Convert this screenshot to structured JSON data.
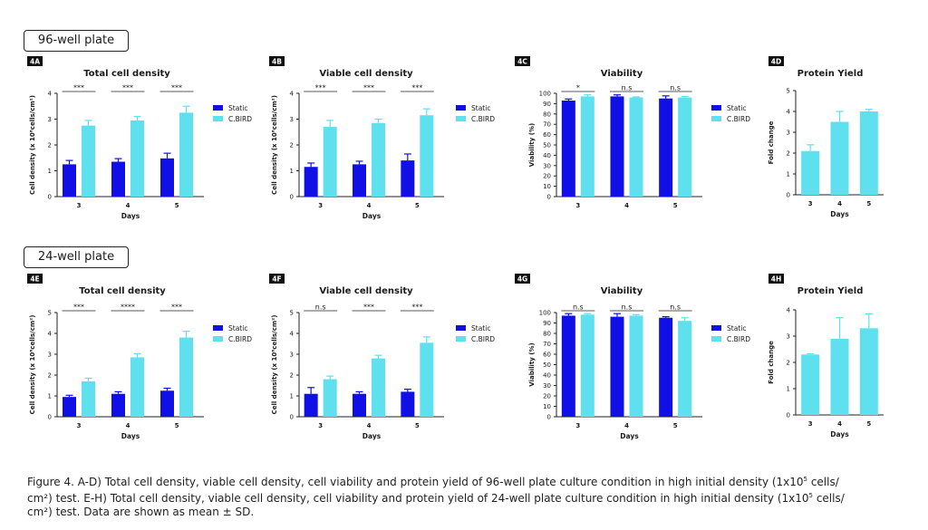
{
  "plates": {
    "p96": "96-well plate",
    "p24": "24-well plate"
  },
  "colors": {
    "static": "#1010e6",
    "cbird": "#5ee0ef"
  },
  "caption": {
    "line1a": "Figure 4. A-D) Total cell density, viable cell density, cell viability and protein yield of 96-well plate culture condition in high initial density (1x10",
    "sup1": "5",
    "line1b": " cells/",
    "line2a": "cm²) test. E-H) Total cell density, viable cell density, cell viability and protein yield of 24-well plate culture condition in high initial density (1x10",
    "sup2": "5",
    "line2b": " cells/",
    "line3": "cm²) test. Data are shown as mean ± SD."
  },
  "chart_data": [
    {
      "panel": "4A",
      "type": "bar",
      "title": "Total cell density",
      "xlabel": "Days",
      "ylabel": "Cell density (x 10⁶cells/cm²)",
      "ylim": [
        0,
        4
      ],
      "yticks": [
        0,
        1,
        2,
        3,
        4
      ],
      "categories": [
        "3",
        "4",
        "5"
      ],
      "series": [
        {
          "name": "Static",
          "values": [
            1.25,
            1.35,
            1.48
          ],
          "errors": [
            0.15,
            0.12,
            0.2
          ]
        },
        {
          "name": "C.BIRD",
          "values": [
            2.75,
            2.95,
            3.25
          ],
          "errors": [
            0.2,
            0.15,
            0.25
          ]
        }
      ],
      "significance": [
        "***",
        "***",
        "***"
      ]
    },
    {
      "panel": "4B",
      "type": "bar",
      "title": "Viable cell density",
      "xlabel": "Days",
      "ylabel": "Cell density (x 10⁶cells/cm²)",
      "ylim": [
        0,
        4
      ],
      "yticks": [
        0,
        1,
        2,
        3,
        4
      ],
      "categories": [
        "3",
        "4",
        "5"
      ],
      "series": [
        {
          "name": "Static",
          "values": [
            1.15,
            1.25,
            1.4
          ],
          "errors": [
            0.15,
            0.12,
            0.25
          ]
        },
        {
          "name": "C.BIRD",
          "values": [
            2.7,
            2.85,
            3.15
          ],
          "errors": [
            0.25,
            0.15,
            0.25
          ]
        }
      ],
      "significance": [
        "***",
        "***",
        "***"
      ]
    },
    {
      "panel": "4C",
      "type": "bar",
      "title": "Viability",
      "xlabel": "",
      "ylabel": "Viability (%)",
      "ylim": [
        0,
        100
      ],
      "yticks": [
        0,
        10,
        20,
        30,
        40,
        50,
        60,
        70,
        80,
        90,
        100
      ],
      "categories": [
        "3",
        "4",
        "5"
      ],
      "series": [
        {
          "name": "Static",
          "values": [
            93,
            97,
            95
          ],
          "errors": [
            1.5,
            1.5,
            2.5
          ]
        },
        {
          "name": "C.BIRD",
          "values": [
            97,
            96,
            96
          ],
          "errors": [
            1.5,
            0.5,
            1
          ]
        }
      ],
      "significance": [
        "*",
        "n.s",
        "n.s"
      ]
    },
    {
      "panel": "4D",
      "type": "bar",
      "title": "Protein Yield",
      "xlabel": "Days",
      "ylabel": "Fold change",
      "ylim": [
        0,
        5
      ],
      "yticks": [
        0,
        1,
        2,
        3,
        4,
        5
      ],
      "categories": [
        "3",
        "4",
        "5"
      ],
      "series": [
        {
          "name": "",
          "values": [
            2.1,
            3.5,
            4.0
          ],
          "errors": [
            0.3,
            0.5,
            0.1
          ]
        }
      ]
    },
    {
      "panel": "4E",
      "type": "bar",
      "title": "Total cell density",
      "xlabel": "Days",
      "ylabel": "Cell density (x 10⁶cells/cm²)",
      "ylim": [
        0,
        5
      ],
      "yticks": [
        0,
        1,
        2,
        3,
        4,
        5
      ],
      "categories": [
        "3",
        "4",
        "5"
      ],
      "series": [
        {
          "name": "Static",
          "values": [
            0.95,
            1.1,
            1.25
          ],
          "errors": [
            0.08,
            0.1,
            0.12
          ]
        },
        {
          "name": "C.BIRD",
          "values": [
            1.7,
            2.85,
            3.8
          ],
          "errors": [
            0.15,
            0.18,
            0.3
          ]
        }
      ],
      "significance": [
        "***",
        "****",
        "***"
      ]
    },
    {
      "panel": "4F",
      "type": "bar",
      "title": "Viable cell density",
      "xlabel": "Days",
      "ylabel": "Cell density (x 10⁶cells/cm²)",
      "ylim": [
        0,
        5
      ],
      "yticks": [
        0,
        1,
        2,
        3,
        4,
        5
      ],
      "categories": [
        "3",
        "4",
        "5"
      ],
      "series": [
        {
          "name": "Static",
          "values": [
            1.1,
            1.1,
            1.2
          ],
          "errors": [
            0.3,
            0.1,
            0.12
          ]
        },
        {
          "name": "C.BIRD",
          "values": [
            1.8,
            2.8,
            3.55
          ],
          "errors": [
            0.15,
            0.15,
            0.28
          ]
        }
      ],
      "significance": [
        "n.s",
        "***",
        "***"
      ]
    },
    {
      "panel": "4G",
      "type": "bar",
      "title": "Viability",
      "xlabel": "Days",
      "ylabel": "Viability (%)",
      "ylim": [
        0,
        100
      ],
      "yticks": [
        0,
        10,
        20,
        30,
        40,
        50,
        60,
        70,
        80,
        90,
        100
      ],
      "categories": [
        "3",
        "4",
        "5"
      ],
      "series": [
        {
          "name": "Static",
          "values": [
            97,
            96,
            95
          ],
          "errors": [
            2,
            3,
            1
          ]
        },
        {
          "name": "C.BIRD",
          "values": [
            98,
            97,
            92
          ],
          "errors": [
            1,
            1,
            3
          ]
        }
      ],
      "significance": [
        "n.s",
        "n.s",
        "n.s"
      ]
    },
    {
      "panel": "4H",
      "type": "bar",
      "title": "Protein Yield",
      "xlabel": "Days",
      "ylabel": "Fold change",
      "ylim": [
        0,
        4
      ],
      "yticks": [
        0,
        1,
        2,
        3,
        4
      ],
      "categories": [
        "3",
        "4",
        "5"
      ],
      "series": [
        {
          "name": "",
          "values": [
            2.3,
            2.9,
            3.3
          ],
          "errors": [
            0.03,
            0.8,
            0.55
          ]
        }
      ]
    }
  ]
}
